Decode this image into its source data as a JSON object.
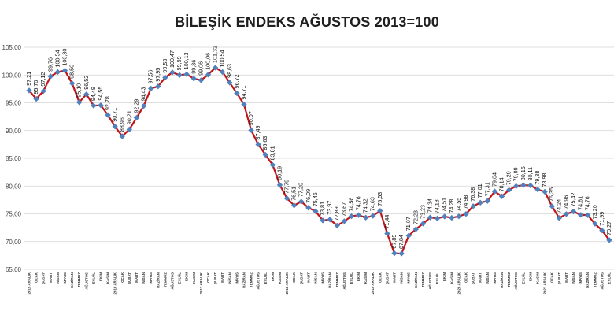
{
  "chart_data": {
    "type": "line",
    "title": "BİLEŞİK ENDEKS AĞUSTOS 2013=100",
    "xlabel": "",
    "ylabel": "",
    "ylim": [
      65,
      105
    ],
    "yticks": [
      "65,00",
      "70,00",
      "75,00",
      "80,00",
      "85,00",
      "90,00",
      "95,00",
      "100,00",
      "105,00"
    ],
    "grid": true,
    "legend": "none",
    "colors": {
      "line": "#c0151b",
      "marker": "#4f81bd",
      "grid": "#d4d4d4"
    },
    "categories": [
      "2015 ARALIK",
      "OCAK",
      "ŞUBAT",
      "MART",
      "NİSAN",
      "MAYIS",
      "HAZİRAN",
      "TEMMUZ",
      "AĞUSTOS",
      "EYLÜL",
      "EKİM",
      "KASIM",
      "2016 ARALIK",
      "OCAK",
      "ŞUBAT",
      "MART",
      "NİSAN",
      "MAYIS",
      "HAZİRAN",
      "TEMMUZ",
      "AĞUSTOS",
      "EYLÜL",
      "EKİM",
      "KASIM",
      "2017 ARALIK",
      "OCAK",
      "ŞUBAT",
      "MART",
      "NİSAN",
      "MAYIS",
      "HAZİRAN",
      "TEMMUZ",
      "AĞUSTOS",
      "EYLÜL",
      "EKİM",
      "KASIM",
      "2018 ARALIK",
      "OCAK",
      "ŞUBAT",
      "MART",
      "NİSAN",
      "MAYIS",
      "HAZİRAN",
      "TEMMUZ",
      "AĞUSTOS",
      "EYLÜL",
      "EKİM",
      "KASIM",
      "2019 ARALIK",
      "OCAK",
      "ŞUBAT",
      "MART",
      "NİSAN",
      "MAYIS",
      "HAZİRAN",
      "TEMMUZ",
      "AĞUSTOS",
      "EYLÜL",
      "EKİM",
      "KASIM",
      "2020 ARALIK",
      "OCAK",
      "ŞUBAT",
      "MART",
      "NİSAN",
      "MAYIS",
      "HAZİRAN",
      "TEMMUZ",
      "AĞUSTOS",
      "EYLÜL",
      "EKİM",
      "KASIM",
      "2021 ARALIK",
      "OCAK",
      "ŞUBAT",
      "MART",
      "NİSAN",
      "MAYIS",
      "HAZİRAN",
      "TEMMUZ",
      "AĞUSTOS",
      "EYLÜL"
    ],
    "values": [
      97.21,
      95.7,
      97.12,
      99.76,
      100.54,
      100.8,
      98.5,
      95.1,
      96.52,
      94.49,
      94.55,
      92.78,
      90.71,
      88.96,
      90.21,
      92.29,
      94.43,
      97.56,
      97.95,
      99.53,
      100.47,
      99.99,
      100.13,
      99.36,
      99.06,
      100.06,
      101.32,
      100.54,
      98.63,
      96.72,
      94.71,
      90.07,
      87.49,
      85.63,
      83.81,
      80.19,
      77.79,
      76.51,
      77.2,
      76.09,
      75.46,
      73.81,
      73.97,
      72.89,
      73.67,
      74.56,
      74.76,
      74.32,
      74.63,
      75.53,
      71.44,
      67.89,
      67.84,
      71.07,
      72.23,
      73.23,
      74.34,
      74.18,
      74.51,
      74.28,
      74.55,
      74.98,
      76.38,
      77.01,
      77.31,
      79.04,
      78.14,
      79.29,
      79.99,
      80.15,
      80.11,
      79.38,
      78.98,
      76.35,
      74.24,
      74.96,
      75.42,
      74.81,
      74.76,
      73.2,
      71.99,
      70.27
    ]
  }
}
